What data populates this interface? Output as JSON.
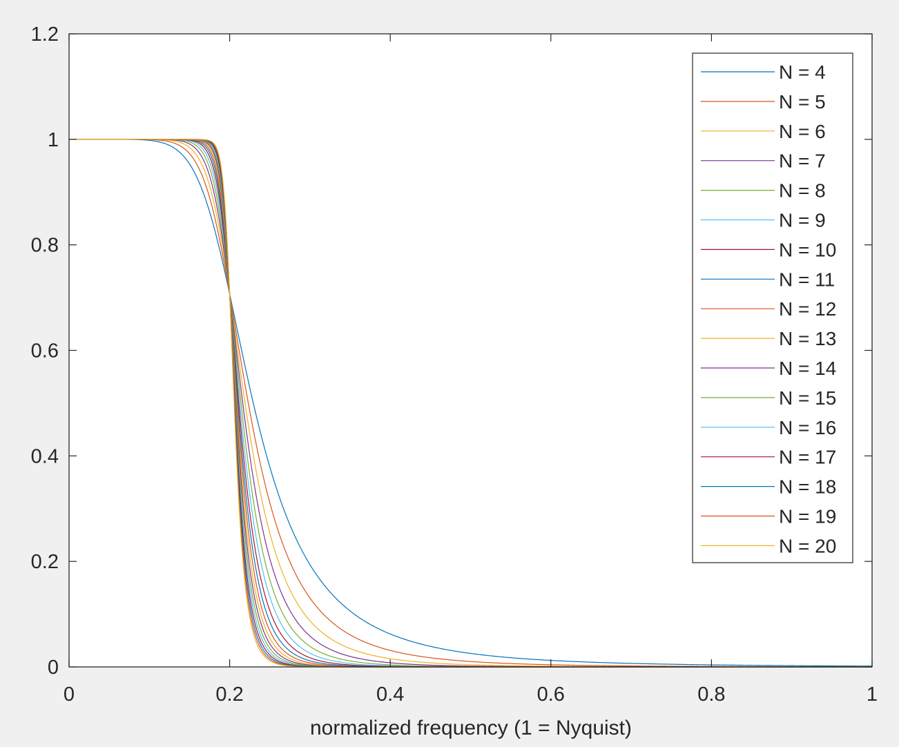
{
  "chart_data": {
    "type": "line",
    "title": "",
    "xlabel": "normalized frequency (1 = Nyquist)",
    "ylabel": "",
    "xlim": [
      0,
      1
    ],
    "ylim": [
      0,
      1.2
    ],
    "xticks": [
      0,
      0.2,
      0.4,
      0.6,
      0.8,
      1
    ],
    "xtick_labels": [
      "0",
      "0.2",
      "0.4",
      "0.6",
      "0.8",
      "1"
    ],
    "yticks": [
      0,
      0.2,
      0.4,
      0.6,
      0.8,
      1,
      1.2
    ],
    "ytick_labels": [
      "0",
      "0.2",
      "0.4",
      "0.6",
      "0.8",
      "1",
      "1.2"
    ],
    "grid": false,
    "legend_position": "top-right",
    "cutoff_frequency": 0.2,
    "x": [
      0,
      0.05,
      0.1,
      0.15,
      0.17,
      0.18,
      0.19,
      0.2,
      0.21,
      0.22,
      0.23,
      0.24,
      0.25,
      0.26,
      0.27,
      0.28,
      0.3,
      0.35,
      0.4,
      0.5,
      0.6,
      0.7,
      0.8,
      0.9,
      1
    ],
    "series": [
      {
        "name": "N = 4",
        "order": 4,
        "color": "#0072BD",
        "values": [
          1,
          1,
          0.998,
          0.969,
          0.911,
          0.859,
          0.792,
          0.707,
          0.608,
          0.51,
          0.422,
          0.347,
          0.283,
          0.232,
          0.193,
          0.161,
          0.113,
          0.055,
          0.03,
          0.011,
          0.005,
          0.002,
          0.001,
          0.0005,
          0.0003
        ]
      },
      {
        "name": "N = 5",
        "order": 5,
        "color": "#D95319",
        "values": [
          1,
          1,
          1,
          0.985,
          0.941,
          0.887,
          0.811,
          0.707,
          0.582,
          0.464,
          0.361,
          0.278,
          0.213,
          0.163,
          0.125,
          0.097,
          0.06,
          0.021,
          0.009,
          0.002,
          0.0006,
          0.0002,
          0.0001,
          0,
          0
        ]
      },
      {
        "name": "N = 6",
        "order": 6,
        "color": "#EDB120",
        "values": [
          1,
          1,
          1,
          0.993,
          0.961,
          0.91,
          0.827,
          0.707,
          0.56,
          0.422,
          0.306,
          0.218,
          0.155,
          0.111,
          0.08,
          0.058,
          0.031,
          0.008,
          0.003,
          0.0004,
          0.0001,
          0,
          0,
          0,
          0
        ]
      },
      {
        "name": "N = 7",
        "order": 7,
        "color": "#7E2F8E",
        "values": [
          1,
          1,
          1,
          0.997,
          0.975,
          0.927,
          0.841,
          0.707,
          0.538,
          0.385,
          0.26,
          0.171,
          0.113,
          0.074,
          0.05,
          0.034,
          0.016,
          0.003,
          0.0007,
          0.0001,
          0,
          0,
          0,
          0,
          0
        ]
      },
      {
        "name": "N = 8",
        "order": 8,
        "color": "#77AC30",
        "values": [
          1,
          1,
          1,
          0.999,
          0.983,
          0.942,
          0.852,
          0.707,
          0.516,
          0.349,
          0.219,
          0.132,
          0.081,
          0.049,
          0.03,
          0.019,
          0.008,
          0.001,
          0.0002,
          0,
          0,
          0,
          0,
          0,
          0
        ]
      },
      {
        "name": "N = 9",
        "order": 9,
        "color": "#4DBEEE",
        "values": [
          1,
          1,
          1,
          0.999,
          0.989,
          0.953,
          0.863,
          0.707,
          0.495,
          0.315,
          0.184,
          0.102,
          0.057,
          0.032,
          0.018,
          0.011,
          0.004,
          0.0004,
          0.0001,
          0,
          0,
          0,
          0,
          0,
          0
        ]
      },
      {
        "name": "N = 10",
        "order": 10,
        "color": "#A2142F",
        "values": [
          1,
          1,
          1,
          1,
          0.992,
          0.963,
          0.873,
          0.707,
          0.475,
          0.284,
          0.154,
          0.078,
          0.04,
          0.021,
          0.011,
          0.006,
          0.002,
          0.0001,
          0,
          0,
          0,
          0,
          0,
          0,
          0
        ]
      },
      {
        "name": "N = 11",
        "order": 11,
        "color": "#0072BD",
        "values": [
          1,
          1,
          1,
          1,
          0.995,
          0.97,
          0.882,
          0.707,
          0.456,
          0.255,
          0.128,
          0.059,
          0.028,
          0.013,
          0.006,
          0.003,
          0.0008,
          0,
          0,
          0,
          0,
          0,
          0,
          0,
          0
        ]
      },
      {
        "name": "N = 12",
        "order": 12,
        "color": "#D95319",
        "values": [
          1,
          1,
          1,
          1,
          0.997,
          0.976,
          0.891,
          0.707,
          0.437,
          0.228,
          0.106,
          0.045,
          0.019,
          0.008,
          0.004,
          0.002,
          0.0004,
          0,
          0,
          0,
          0,
          0,
          0,
          0,
          0
        ]
      },
      {
        "name": "N = 13",
        "order": 13,
        "color": "#EDB120",
        "values": [
          1,
          1,
          1,
          1,
          0.998,
          0.981,
          0.899,
          0.707,
          0.418,
          0.204,
          0.088,
          0.034,
          0.013,
          0.005,
          0.002,
          0.001,
          0.0002,
          0,
          0,
          0,
          0,
          0,
          0,
          0,
          0
        ]
      },
      {
        "name": "N = 14",
        "order": 14,
        "color": "#7E2F8E",
        "values": [
          1,
          1,
          1,
          1,
          0.999,
          0.985,
          0.906,
          0.707,
          0.4,
          0.182,
          0.073,
          0.026,
          0.009,
          0.003,
          0.001,
          0.0006,
          0.0001,
          0,
          0,
          0,
          0,
          0,
          0,
          0,
          0
        ]
      },
      {
        "name": "N = 15",
        "order": 15,
        "color": "#77AC30",
        "values": [
          1,
          1,
          1,
          1,
          0.999,
          0.988,
          0.913,
          0.707,
          0.383,
          0.162,
          0.06,
          0.019,
          0.006,
          0.002,
          0.0007,
          0.0003,
          0,
          0,
          0,
          0,
          0,
          0,
          0,
          0,
          0
        ]
      },
      {
        "name": "N = 16",
        "order": 16,
        "color": "#4DBEEE",
        "values": [
          1,
          1,
          1,
          1,
          1,
          0.991,
          0.92,
          0.707,
          0.366,
          0.144,
          0.049,
          0.015,
          0.004,
          0.001,
          0.0004,
          0.0001,
          0,
          0,
          0,
          0,
          0,
          0,
          0,
          0,
          0
        ]
      },
      {
        "name": "N = 17",
        "order": 17,
        "color": "#A2142F",
        "values": [
          1,
          1,
          1,
          1,
          1,
          0.993,
          0.926,
          0.707,
          0.35,
          0.128,
          0.04,
          0.011,
          0.003,
          0.0008,
          0.0002,
          0,
          0,
          0,
          0,
          0,
          0,
          0,
          0,
          0,
          0
        ]
      },
      {
        "name": "N = 18",
        "order": 18,
        "color": "#0072BD",
        "values": [
          1,
          1,
          1,
          1,
          1,
          0.994,
          0.932,
          0.707,
          0.334,
          0.114,
          0.033,
          0.008,
          0.002,
          0.0005,
          0.0001,
          0,
          0,
          0,
          0,
          0,
          0,
          0,
          0,
          0,
          0
        ]
      },
      {
        "name": "N = 19",
        "order": 19,
        "color": "#D95319",
        "values": [
          1,
          1,
          1,
          1,
          1,
          0.995,
          0.937,
          0.707,
          0.319,
          0.101,
          0.027,
          0.006,
          0.001,
          0.0003,
          0,
          0,
          0,
          0,
          0,
          0,
          0,
          0,
          0,
          0,
          0
        ]
      },
      {
        "name": "N = 20",
        "order": 20,
        "color": "#EDB120",
        "values": [
          1,
          1,
          1,
          1,
          1,
          0.996,
          0.942,
          0.707,
          0.304,
          0.09,
          0.022,
          0.005,
          0.001,
          0.0002,
          0,
          0,
          0,
          0,
          0,
          0,
          0,
          0,
          0,
          0,
          0
        ]
      }
    ]
  }
}
